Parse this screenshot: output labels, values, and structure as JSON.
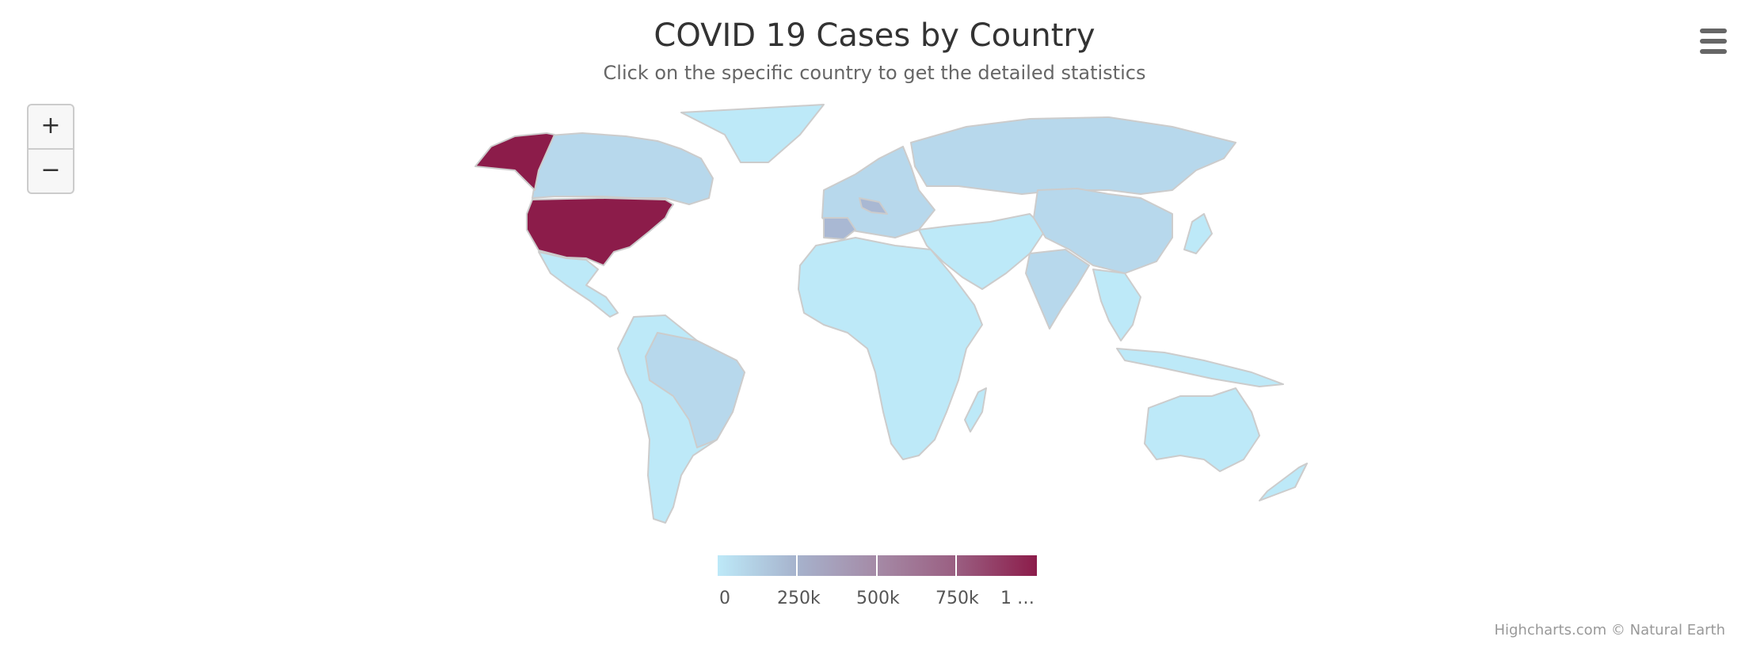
{
  "title": "COVID 19 Cases by Country",
  "subtitle": "Click on the specific country to get the detailed statistics",
  "zoom": {
    "in_label": "+",
    "out_label": "−"
  },
  "menu": {
    "icon": "hamburger-menu-icon"
  },
  "legend": {
    "labels": [
      "0",
      "250k",
      "500k",
      "750k",
      "1 …"
    ],
    "stops": [
      0,
      250000,
      500000,
      750000,
      1000000
    ],
    "colors": [
      "#bde9f8",
      "#8c1c4a"
    ]
  },
  "credits": "Highcharts.com © Natural Earth",
  "colors": {
    "low": "#bde9f8",
    "mid": "#b7d8ec",
    "mid2": "#a9b8d3",
    "high": "#8c1c4a",
    "border": "#cccccc"
  }
}
